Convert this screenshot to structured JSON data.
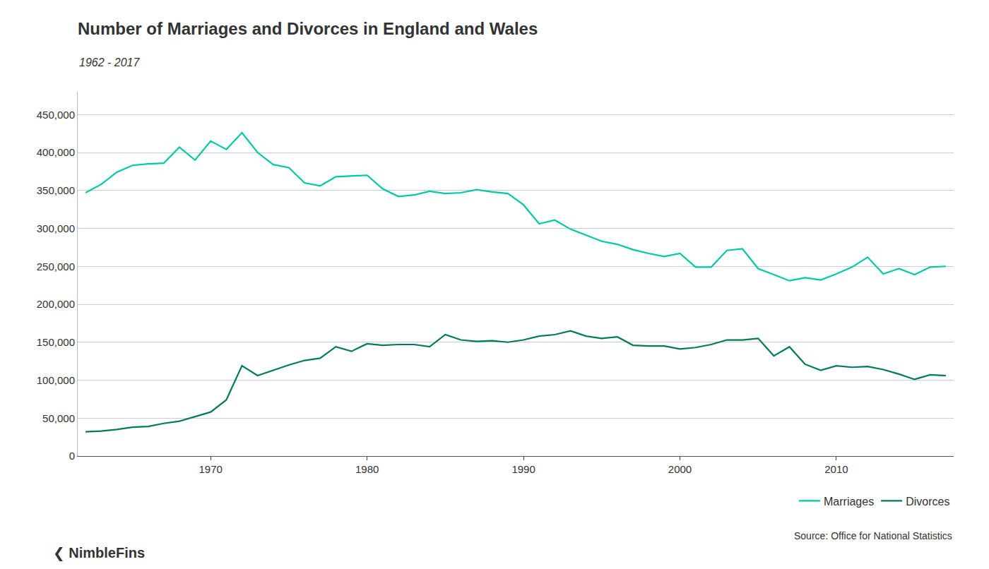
{
  "chart_data": {
    "type": "line",
    "title": "Number of Marriages and Divorces in England and Wales",
    "subtitle": "1962 - 2017",
    "annotations": [
      "Source: Office for National Statistics",
      "❮ NimbleFins"
    ],
    "x": [
      1962,
      1963,
      1964,
      1965,
      1966,
      1967,
      1968,
      1969,
      1970,
      1971,
      1972,
      1973,
      1974,
      1975,
      1976,
      1977,
      1978,
      1979,
      1980,
      1981,
      1982,
      1983,
      1984,
      1985,
      1986,
      1987,
      1988,
      1989,
      1990,
      1991,
      1992,
      1993,
      1994,
      1995,
      1996,
      1997,
      1998,
      1999,
      2000,
      2001,
      2002,
      2003,
      2004,
      2005,
      2006,
      2007,
      2008,
      2009,
      2010,
      2011,
      2012,
      2013,
      2014,
      2015,
      2016,
      2017
    ],
    "series": [
      {
        "name": "Marriages",
        "color": "#00C9A7",
        "values": [
          347000,
          358000,
          374000,
          383000,
          385000,
          386000,
          407000,
          390000,
          415000,
          404000,
          426000,
          400000,
          384000,
          380000,
          360000,
          356000,
          368000,
          369000,
          370000,
          352000,
          342000,
          344000,
          349000,
          346000,
          347000,
          351000,
          348000,
          346000,
          331000,
          306000,
          311000,
          299000,
          291000,
          283000,
          279000,
          272000,
          267000,
          263000,
          267000,
          249000,
          249000,
          271000,
          273000,
          247000,
          239000,
          231000,
          235000,
          232000,
          240000,
          249000,
          262000,
          240000,
          247000,
          239000,
          249000,
          250000
        ]
      },
      {
        "name": "Divorces",
        "color": "#007A5E",
        "values": [
          32000,
          33000,
          35000,
          38000,
          39000,
          43000,
          46000,
          52000,
          58000,
          74000,
          119000,
          106000,
          113000,
          120000,
          126000,
          129000,
          144000,
          138000,
          148000,
          146000,
          147000,
          147000,
          144000,
          160000,
          153000,
          151000,
          152000,
          150000,
          153000,
          158000,
          160000,
          165000,
          158000,
          155000,
          157000,
          146000,
          145000,
          145000,
          141000,
          143000,
          147000,
          153000,
          153000,
          155000,
          132000,
          144000,
          121000,
          113000,
          119000,
          117000,
          118000,
          114000,
          108000,
          101000,
          107000,
          106000
        ]
      }
    ],
    "xlim": [
      1961.5,
      2017.5
    ],
    "xticks": [
      1970,
      1980,
      1990,
      2000,
      2010
    ],
    "ylim": [
      0,
      480000
    ],
    "yticks": [
      0,
      {
        "value": 50000,
        "label": "50,000"
      },
      {
        "value": 100000,
        "label": "100,000"
      },
      {
        "value": 150000,
        "label": "150,000"
      },
      {
        "value": 200000,
        "label": "200,000"
      },
      {
        "value": 250000,
        "label": "250,000"
      },
      {
        "value": 300000,
        "label": "300,000"
      },
      {
        "value": 350000,
        "label": "350,000"
      },
      {
        "value": 400000,
        "label": "400,000"
      },
      {
        "value": 450000,
        "label": "450,000"
      }
    ],
    "grid": true,
    "legend": "lower right"
  }
}
